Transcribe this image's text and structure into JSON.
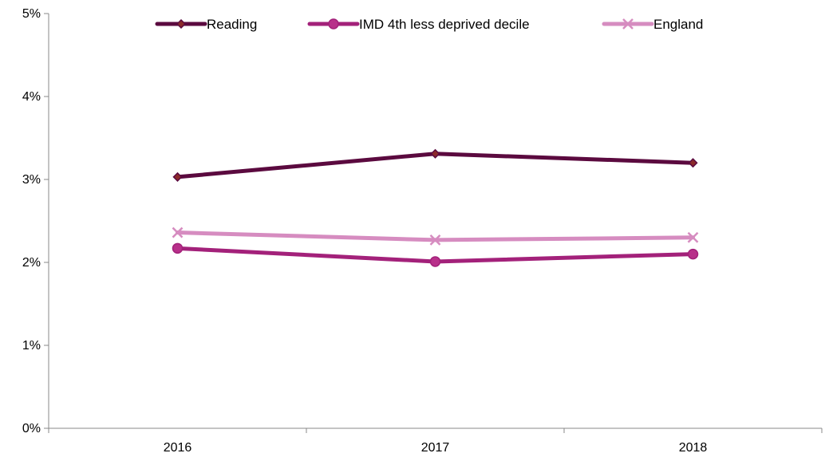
{
  "chart_data": {
    "type": "line",
    "x": [
      "2016",
      "2017",
      "2018"
    ],
    "ylim": [
      0,
      5
    ],
    "yticks": [
      0,
      1,
      2,
      3,
      4,
      5
    ],
    "ytick_labels": [
      "0%",
      "1%",
      "2%",
      "3%",
      "4%",
      "5%"
    ],
    "grid": false,
    "legend_position": "top",
    "series": [
      {
        "name": "Reading",
        "values": [
          3.03,
          3.31,
          3.2
        ],
        "color": "#5B0A3F",
        "marker": "diamond",
        "marker_fill": "#8B2A2A"
      },
      {
        "name": "IMD 4th less deprived decile",
        "values": [
          2.17,
          2.01,
          2.1
        ],
        "color": "#A3217A",
        "marker": "circle",
        "marker_fill": "#B8308A"
      },
      {
        "name": "England",
        "values": [
          2.36,
          2.27,
          2.3
        ],
        "color": "#D68CC0",
        "marker": "x",
        "marker_fill": "#D68CC0"
      }
    ]
  }
}
